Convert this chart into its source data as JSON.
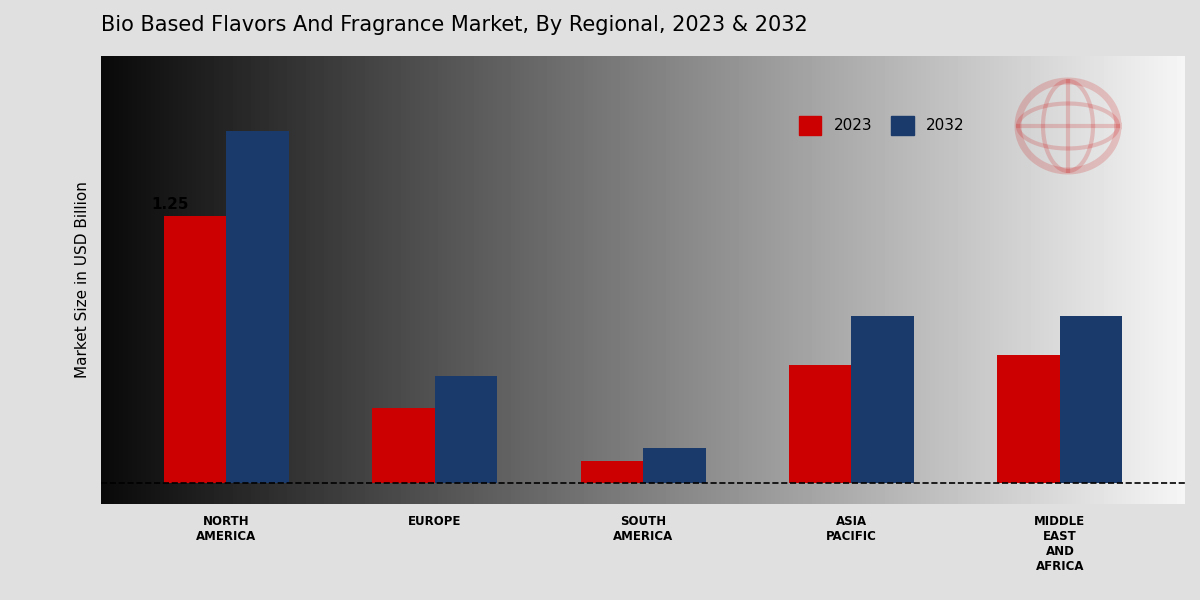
{
  "title": "Bio Based Flavors And Fragrance Market, By Regional, 2023 & 2032",
  "ylabel": "Market Size in USD Billion",
  "categories": [
    "NORTH\nAMERICA",
    "EUROPE",
    "SOUTH\nAMERICA",
    "ASIA\nPACIFIC",
    "MIDDLE\nEAST\nAND\nAFRICA"
  ],
  "values_2023": [
    1.25,
    0.35,
    0.1,
    0.55,
    0.6
  ],
  "values_2032": [
    1.65,
    0.5,
    0.16,
    0.78,
    0.78
  ],
  "color_2023": "#cc0000",
  "color_2032": "#1a3a6b",
  "annotation_value": "1.25",
  "annotation_bar_index": 0,
  "bar_width": 0.3,
  "background_color": "#e0e0e0",
  "title_fontsize": 15,
  "label_fontsize": 8.5,
  "ylabel_fontsize": 11,
  "legend_fontsize": 11,
  "annotation_fontsize": 11,
  "ylim_max": 2.0,
  "ylim_min": -0.1
}
